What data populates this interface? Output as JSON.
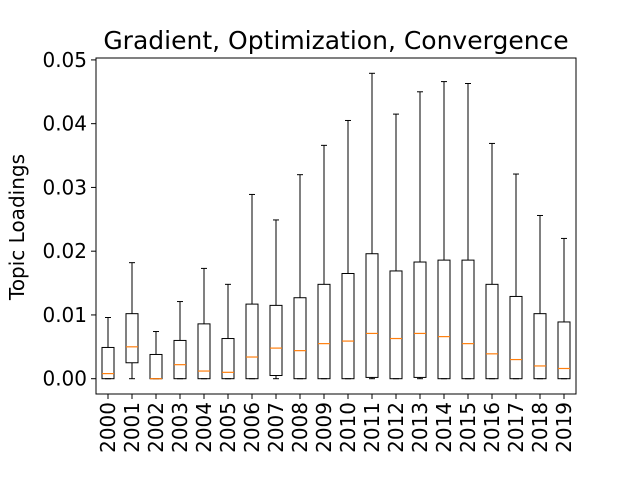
{
  "chart_data": {
    "type": "box",
    "title": "Gradient, Optimization, Convergence",
    "xlabel": "",
    "ylabel": "Topic Loadings",
    "ylim": [
      -0.0024,
      0.0503
    ],
    "yticks": [
      "0.00",
      "0.01",
      "0.02",
      "0.03",
      "0.04",
      "0.05"
    ],
    "ytick_values": [
      0,
      0.01,
      0.02,
      0.03,
      0.04,
      0.05
    ],
    "grid": false,
    "colors": {
      "box": "#000000",
      "median": "#ff7f0e",
      "whisker": "#000000"
    },
    "categories": [
      "2000",
      "2001",
      "2002",
      "2003",
      "2004",
      "2005",
      "2006",
      "2007",
      "2008",
      "2009",
      "2010",
      "2011",
      "2012",
      "2013",
      "2014",
      "2015",
      "2016",
      "2017",
      "2018",
      "2019"
    ],
    "boxes": [
      {
        "min": 0,
        "q1": 0,
        "median": 0.0008,
        "q3": 0.0049,
        "max": 0.0096
      },
      {
        "min": 0,
        "q1": 0.0025,
        "median": 0.005,
        "q3": 0.0102,
        "max": 0.0182
      },
      {
        "min": 0,
        "q1": 0,
        "median": 0,
        "q3": 0.0038,
        "max": 0.0074
      },
      {
        "min": 0,
        "q1": 0,
        "median": 0.0022,
        "q3": 0.006,
        "max": 0.0121
      },
      {
        "min": 0,
        "q1": 0,
        "median": 0.0012,
        "q3": 0.0086,
        "max": 0.0173
      },
      {
        "min": 0,
        "q1": 0,
        "median": 0.001,
        "q3": 0.0063,
        "max": 0.0148
      },
      {
        "min": 0,
        "q1": 0,
        "median": 0.0034,
        "q3": 0.0117,
        "max": 0.0289
      },
      {
        "min": 0,
        "q1": 0.0005,
        "median": 0.0048,
        "q3": 0.0115,
        "max": 0.0249
      },
      {
        "min": 0,
        "q1": 0,
        "median": 0.0044,
        "q3": 0.0127,
        "max": 0.032
      },
      {
        "min": 0,
        "q1": 0,
        "median": 0.0055,
        "q3": 0.0148,
        "max": 0.0366
      },
      {
        "min": 0,
        "q1": 0,
        "median": 0.0059,
        "q3": 0.0165,
        "max": 0.0405
      },
      {
        "min": 0,
        "q1": 0.0002,
        "median": 0.0071,
        "q3": 0.0196,
        "max": 0.0479
      },
      {
        "min": 0,
        "q1": 0,
        "median": 0.0063,
        "q3": 0.0169,
        "max": 0.0415
      },
      {
        "min": 0,
        "q1": 0.0002,
        "median": 0.0071,
        "q3": 0.0183,
        "max": 0.045
      },
      {
        "min": 0,
        "q1": 0,
        "median": 0.0066,
        "q3": 0.0186,
        "max": 0.0466
      },
      {
        "min": 0,
        "q1": 0,
        "median": 0.0055,
        "q3": 0.0186,
        "max": 0.0463
      },
      {
        "min": 0,
        "q1": 0,
        "median": 0.0039,
        "q3": 0.0148,
        "max": 0.0369
      },
      {
        "min": 0,
        "q1": 0,
        "median": 0.003,
        "q3": 0.0129,
        "max": 0.0321
      },
      {
        "min": 0,
        "q1": 0,
        "median": 0.002,
        "q3": 0.0102,
        "max": 0.0256
      },
      {
        "min": 0,
        "q1": 0,
        "median": 0.0016,
        "q3": 0.0089,
        "max": 0.022
      }
    ]
  }
}
